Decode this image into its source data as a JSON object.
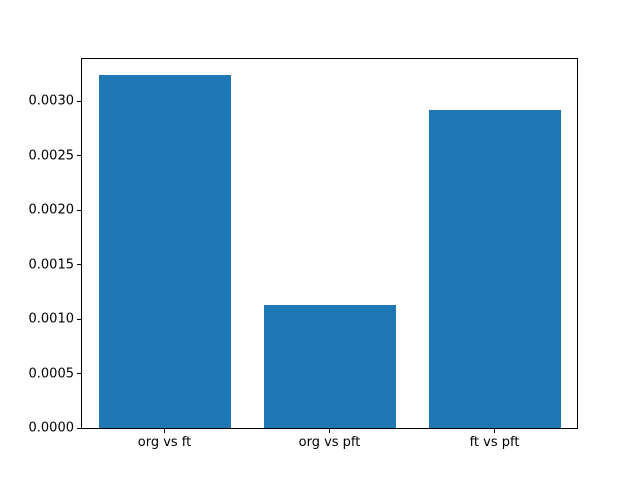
{
  "figure": {
    "background_color": "#ffffff",
    "text_color": "#000000",
    "spine_color": "#000000"
  },
  "chart_data": {
    "type": "bar",
    "title": "",
    "xlabel": "",
    "ylabel": "",
    "categories": [
      "org vs ft",
      "org vs pft",
      "ft vs pft"
    ],
    "values": [
      0.00324,
      0.00113,
      0.00292
    ],
    "bar_color": "#1f77b4",
    "bar_width_fraction": 0.8,
    "ylim": [
      0,
      0.00339
    ],
    "yticks": [
      0.0,
      0.0005,
      0.001,
      0.0015,
      0.002,
      0.0025,
      0.003
    ],
    "ytick_labels": [
      "0.0000",
      "0.0005",
      "0.0010",
      "0.0015",
      "0.0020",
      "0.0025",
      "0.0030"
    ],
    "grid": false,
    "legend": null
  }
}
